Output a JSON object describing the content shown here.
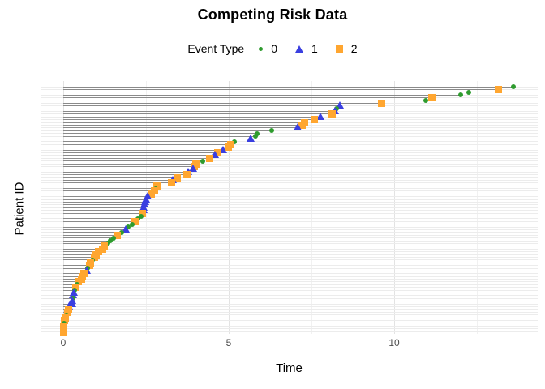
{
  "title": "Competing Risk Data",
  "legend": {
    "title": "Event Type",
    "items": [
      {
        "label": "0",
        "shape": "circle",
        "color": "#2e9b2e"
      },
      {
        "label": "1",
        "shape": "triangle",
        "color": "#3a3fe0"
      },
      {
        "label": "2",
        "shape": "square",
        "color": "#ffa630"
      }
    ]
  },
  "axes": {
    "x_label": "Time",
    "y_label": "Patient ID",
    "x_ticks": [
      0,
      5,
      10
    ],
    "x_minor_ticks": [
      2.5,
      7.5,
      12.5
    ]
  },
  "colors": {
    "event_0": "#2e9b2e",
    "event_1": "#3a3fe0",
    "event_2": "#ffa630",
    "segment": "#8a8a8a",
    "gridline": "#ececec",
    "tick_text": "#4d4d4d"
  },
  "chart_data": {
    "type": "scatter",
    "title": "Competing Risk Data",
    "xlabel": "Time",
    "ylabel": "Patient ID",
    "xlim": [
      -0.69,
      14.34
    ],
    "x_major_ticks": [
      0,
      5,
      10
    ],
    "x_minor_ticks": [
      2.5,
      7.5,
      12.5
    ],
    "legend_title": "Event Type",
    "legend_entries": [
      "0",
      "1",
      "2"
    ],
    "legend_position": "top",
    "grid": true,
    "n_patients": 90,
    "description": "One horizontal segment per patient from time 0 to event time, sorted with longest time at top; marker shape/color encodes event type (0 green circle, 1 blue triangle, 2 orange square).",
    "order": "top-to-bottom (largest time first)",
    "times": [
      13.6,
      13.15,
      12.25,
      12.0,
      11.15,
      10.95,
      9.63,
      8.35,
      8.26,
      8.2,
      8.12,
      7.77,
      7.58,
      7.3,
      7.22,
      7.08,
      6.3,
      5.87,
      5.81,
      5.65,
      5.16,
      5.07,
      4.99,
      4.83,
      4.67,
      4.58,
      4.42,
      4.22,
      4.01,
      3.97,
      3.93,
      3.77,
      3.73,
      3.44,
      3.3,
      3.28,
      2.83,
      2.79,
      2.75,
      2.65,
      2.54,
      2.5,
      2.48,
      2.46,
      2.43,
      2.42,
      2.38,
      2.35,
      2.25,
      2.16,
      2.09,
      1.97,
      1.89,
      1.76,
      1.64,
      1.52,
      1.42,
      1.34,
      1.23,
      1.19,
      1.07,
      0.99,
      0.95,
      0.88,
      0.83,
      0.8,
      0.73,
      0.7,
      0.62,
      0.58,
      0.56,
      0.46,
      0.42,
      0.37,
      0.34,
      0.32,
      0.3,
      0.29,
      0.28,
      0.26,
      0.17,
      0.15,
      0.13,
      0.09,
      0.07,
      0.04,
      0.02,
      0.01,
      0.01,
      0.0
    ],
    "events": [
      0,
      2,
      0,
      0,
      2,
      0,
      2,
      1,
      0,
      1,
      2,
      1,
      2,
      2,
      2,
      1,
      0,
      0,
      0,
      1,
      0,
      2,
      2,
      1,
      2,
      1,
      2,
      0,
      2,
      2,
      1,
      1,
      2,
      2,
      1,
      2,
      2,
      0,
      2,
      2,
      1,
      1,
      1,
      1,
      1,
      1,
      2,
      0,
      0,
      2,
      0,
      0,
      1,
      0,
      2,
      0,
      0,
      0,
      2,
      2,
      2,
      2,
      2,
      0,
      2,
      2,
      0,
      1,
      2,
      2,
      2,
      2,
      0,
      2,
      0,
      1,
      1,
      0,
      1,
      1,
      1,
      2,
      2,
      0,
      2,
      2,
      0,
      2,
      2,
      2
    ]
  }
}
